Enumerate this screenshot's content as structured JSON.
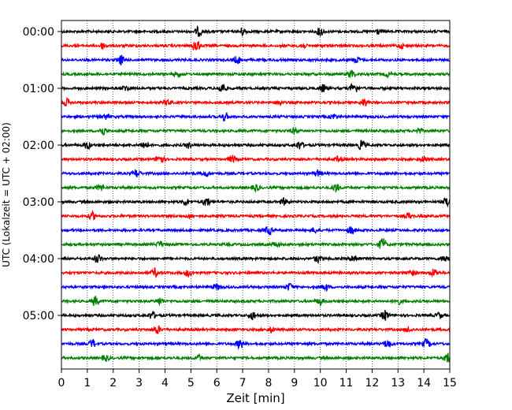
{
  "chart_data": {
    "type": "line",
    "subtype": "helicorder",
    "title": "",
    "xlabel": "Zeit  [min]",
    "ylabel": "UTC (Lokalzeit = UTC + 02:00)",
    "xlim": [
      0,
      15
    ],
    "x_ticks": [
      "0",
      "1",
      "2",
      "3",
      "4",
      "5",
      "6",
      "7",
      "8",
      "9",
      "10",
      "11",
      "12",
      "13",
      "14",
      "15"
    ],
    "y_ticks": [
      {
        "label": "00:00",
        "row": 0
      },
      {
        "label": "01:00",
        "row": 4
      },
      {
        "label": "02:00",
        "row": 8
      },
      {
        "label": "03:00",
        "row": 12
      },
      {
        "label": "04:00",
        "row": 16
      },
      {
        "label": "05:00",
        "row": 20
      }
    ],
    "grid": "vertical dotted",
    "row_count": 24,
    "row_minutes": 15,
    "color_cycle": [
      "#000000",
      "#ff0000",
      "#0000ff",
      "#008000"
    ],
    "series": [
      {
        "row": 0,
        "color": "#000000",
        "events": [
          [
            5.3,
            1.0
          ],
          [
            7.0,
            0.8
          ],
          [
            10.0,
            0.9
          ],
          [
            12.2,
            0.6
          ]
        ]
      },
      {
        "row": 1,
        "color": "#ff0000",
        "events": [
          [
            1.6,
            0.7
          ],
          [
            5.2,
            1.6
          ],
          [
            9.3,
            0.6
          ],
          [
            13.1,
            0.5
          ]
        ]
      },
      {
        "row": 2,
        "color": "#0000ff",
        "events": [
          [
            2.3,
            1.0
          ],
          [
            6.8,
            0.8
          ],
          [
            11.4,
            0.7
          ]
        ]
      },
      {
        "row": 3,
        "color": "#008000",
        "events": [
          [
            4.5,
            0.6
          ],
          [
            11.2,
            0.9
          ],
          [
            12.6,
            0.5
          ]
        ]
      },
      {
        "row": 4,
        "color": "#000000",
        "events": [
          [
            6.2,
            1.2
          ],
          [
            11.3,
            1.3
          ],
          [
            10.1,
            0.8
          ],
          [
            2.5,
            0.6
          ]
        ]
      },
      {
        "row": 5,
        "color": "#ff0000",
        "events": [
          [
            0.2,
            0.8
          ],
          [
            4.1,
            0.6
          ],
          [
            8.4,
            0.5
          ],
          [
            11.7,
            0.8
          ]
        ]
      },
      {
        "row": 6,
        "color": "#0000ff",
        "events": [
          [
            6.3,
            0.9
          ],
          [
            10.5,
            0.6
          ],
          [
            1.7,
            0.5
          ]
        ]
      },
      {
        "row": 7,
        "color": "#008000",
        "events": [
          [
            1.6,
            0.9
          ],
          [
            9.0,
            0.6
          ],
          [
            13.8,
            0.5
          ]
        ]
      },
      {
        "row": 8,
        "color": "#000000",
        "events": [
          [
            1.0,
            0.8
          ],
          [
            3.2,
            0.9
          ],
          [
            4.9,
            0.6
          ],
          [
            9.2,
            0.9
          ],
          [
            11.6,
            1.1
          ]
        ]
      },
      {
        "row": 9,
        "color": "#ff0000",
        "events": [
          [
            3.8,
            1.2
          ],
          [
            6.6,
            0.8
          ],
          [
            10.7,
            0.6
          ],
          [
            14.0,
            0.6
          ]
        ]
      },
      {
        "row": 10,
        "color": "#0000ff",
        "events": [
          [
            2.9,
            0.9
          ],
          [
            5.6,
            0.6
          ],
          [
            9.9,
            0.7
          ]
        ]
      },
      {
        "row": 11,
        "color": "#008000",
        "events": [
          [
            1.5,
            0.7
          ],
          [
            7.5,
            0.8
          ],
          [
            10.6,
            0.9
          ]
        ]
      },
      {
        "row": 12,
        "color": "#000000",
        "events": [
          [
            5.6,
            1.0
          ],
          [
            4.8,
            0.7
          ],
          [
            8.6,
            0.7
          ],
          [
            14.9,
            1.1
          ]
        ]
      },
      {
        "row": 13,
        "color": "#ff0000",
        "events": [
          [
            1.2,
            0.8
          ],
          [
            5.0,
            0.5
          ],
          [
            13.4,
            0.6
          ]
        ]
      },
      {
        "row": 14,
        "color": "#0000ff",
        "events": [
          [
            8.0,
            0.9
          ],
          [
            11.2,
            0.8
          ],
          [
            9.8,
            0.6
          ]
        ]
      },
      {
        "row": 15,
        "color": "#008000",
        "events": [
          [
            12.4,
            1.4
          ],
          [
            3.8,
            0.6
          ],
          [
            8.3,
            0.5
          ]
        ]
      },
      {
        "row": 16,
        "color": "#000000",
        "events": [
          [
            1.4,
            0.9
          ],
          [
            9.9,
            0.8
          ],
          [
            11.3,
            1.0
          ],
          [
            14.8,
            0.7
          ]
        ]
      },
      {
        "row": 17,
        "color": "#ff0000",
        "events": [
          [
            3.6,
            0.9
          ],
          [
            4.9,
            0.8
          ],
          [
            13.5,
            0.7
          ],
          [
            14.4,
            0.9
          ]
        ]
      },
      {
        "row": 18,
        "color": "#0000ff",
        "events": [
          [
            6.0,
            0.6
          ],
          [
            8.8,
            0.8
          ],
          [
            10.2,
            0.7
          ]
        ]
      },
      {
        "row": 19,
        "color": "#008000",
        "events": [
          [
            1.3,
            1.0
          ],
          [
            3.8,
            0.8
          ],
          [
            10.0,
            0.8
          ],
          [
            13.0,
            0.6
          ]
        ]
      },
      {
        "row": 20,
        "color": "#000000",
        "events": [
          [
            3.5,
            0.8
          ],
          [
            7.4,
            0.9
          ],
          [
            12.5,
            1.1
          ],
          [
            14.6,
            0.6
          ]
        ]
      },
      {
        "row": 21,
        "color": "#ff0000",
        "events": [
          [
            3.7,
            0.9
          ],
          [
            8.1,
            0.6
          ],
          [
            13.4,
            0.5
          ]
        ]
      },
      {
        "row": 22,
        "color": "#0000ff",
        "events": [
          [
            1.2,
            0.9
          ],
          [
            6.9,
            1.0
          ],
          [
            12.6,
            0.9
          ],
          [
            14.1,
            1.0
          ]
        ]
      },
      {
        "row": 23,
        "color": "#008000",
        "events": [
          [
            1.7,
            0.7
          ],
          [
            5.3,
            0.6
          ],
          [
            14.9,
            1.1
          ]
        ]
      }
    ]
  }
}
